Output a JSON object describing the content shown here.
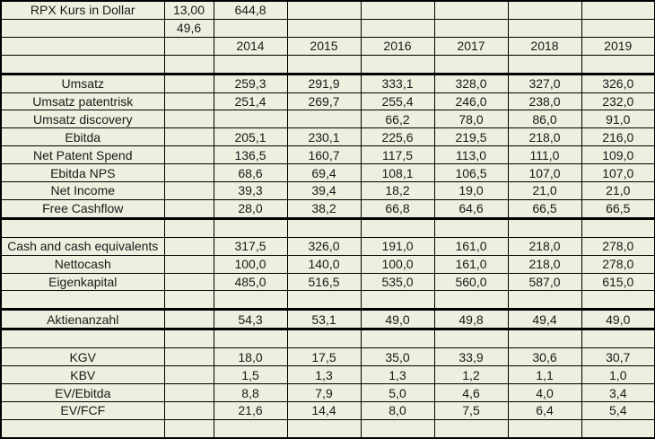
{
  "colors": {
    "cell_background": "#ebf1de",
    "grid_line": "#000000",
    "text": "#1a1a1a"
  },
  "table": {
    "title_cell": "RPX Kurs in Dollar",
    "years": [
      "2014",
      "2015",
      "2016",
      "2017",
      "2018",
      "2019"
    ],
    "rows": [
      {
        "label": "RPX Kurs in Dollar",
        "aux": "13,00",
        "values": [
          "644,8",
          "",
          "",
          "",
          "",
          ""
        ],
        "thick_bottom": false
      },
      {
        "label": "",
        "aux": "49,6",
        "values": [
          "",
          "",
          "",
          "",
          "",
          ""
        ],
        "thick_bottom": false
      },
      {
        "label": "",
        "aux": "",
        "values": [
          "2014",
          "2015",
          "2016",
          "2017",
          "2018",
          "2019"
        ],
        "thick_bottom": false
      },
      {
        "label": "",
        "aux": "",
        "values": [
          "",
          "",
          "",
          "",
          "",
          ""
        ],
        "thick_bottom": true
      },
      {
        "label": "Umsatz",
        "aux": "",
        "values": [
          "259,3",
          "291,9",
          "333,1",
          "328,0",
          "327,0",
          "326,0"
        ],
        "thick_bottom": false
      },
      {
        "label": "Umsatz patentrisk",
        "aux": "",
        "values": [
          "251,4",
          "269,7",
          "255,4",
          "246,0",
          "238,0",
          "232,0"
        ],
        "thick_bottom": false
      },
      {
        "label": "Umsatz discovery",
        "aux": "",
        "values": [
          "",
          "",
          "66,2",
          "78,0",
          "86,0",
          "91,0"
        ],
        "thick_bottom": false
      },
      {
        "label": "Ebitda",
        "aux": "",
        "values": [
          "205,1",
          "230,1",
          "225,6",
          "219,5",
          "218,0",
          "216,0"
        ],
        "thick_bottom": false
      },
      {
        "label": "Net Patent Spend",
        "aux": "",
        "values": [
          "136,5",
          "160,7",
          "117,5",
          "113,0",
          "111,0",
          "109,0"
        ],
        "thick_bottom": false
      },
      {
        "label": "Ebitda NPS",
        "aux": "",
        "values": [
          "68,6",
          "69,4",
          "108,1",
          "106,5",
          "107,0",
          "107,0"
        ],
        "thick_bottom": false
      },
      {
        "label": "Net Income",
        "aux": "",
        "values": [
          "39,3",
          "39,4",
          "18,2",
          "19,0",
          "21,0",
          "21,0"
        ],
        "thick_bottom": false
      },
      {
        "label": "Free Cashflow",
        "aux": "",
        "values": [
          "28,0",
          "38,2",
          "66,8",
          "64,6",
          "66,5",
          "66,5"
        ],
        "thick_bottom": true
      },
      {
        "label": "",
        "aux": "",
        "values": [
          "",
          "",
          "",
          "",
          "",
          ""
        ],
        "thick_bottom": false
      },
      {
        "label": "Cash and cash equivalents",
        "aux": "",
        "values": [
          "317,5",
          "326,0",
          "191,0",
          "161,0",
          "218,0",
          "278,0"
        ],
        "thick_bottom": false
      },
      {
        "label": "Nettocash",
        "aux": "",
        "values": [
          "100,0",
          "140,0",
          "100,0",
          "161,0",
          "218,0",
          "278,0"
        ],
        "thick_bottom": false
      },
      {
        "label": "Eigenkapital",
        "aux": "",
        "values": [
          "485,0",
          "516,5",
          "535,0",
          "560,0",
          "587,0",
          "615,0"
        ],
        "thick_bottom": false
      },
      {
        "label": "",
        "aux": "",
        "values": [
          "",
          "",
          "",
          "",
          "",
          ""
        ],
        "thick_bottom": true
      },
      {
        "label": "Aktienanzahl",
        "aux": "",
        "values": [
          "54,3",
          "53,1",
          "49,0",
          "49,8",
          "49,4",
          "49,0"
        ],
        "thick_bottom": true
      },
      {
        "label": "",
        "aux": "",
        "values": [
          "",
          "",
          "",
          "",
          "",
          ""
        ],
        "thick_bottom": false
      },
      {
        "label": "KGV",
        "aux": "",
        "values": [
          "18,0",
          "17,5",
          "35,0",
          "33,9",
          "30,6",
          "30,7"
        ],
        "thick_bottom": false
      },
      {
        "label": "KBV",
        "aux": "",
        "values": [
          "1,5",
          "1,3",
          "1,3",
          "1,2",
          "1,1",
          "1,0"
        ],
        "thick_bottom": false
      },
      {
        "label": "EV/Ebitda",
        "aux": "",
        "values": [
          "8,8",
          "7,9",
          "5,0",
          "4,6",
          "4,0",
          "3,4"
        ],
        "thick_bottom": false
      },
      {
        "label": "EV/FCF",
        "aux": "",
        "values": [
          "21,6",
          "14,4",
          "8,0",
          "7,5",
          "6,4",
          "5,4"
        ],
        "thick_bottom": false
      },
      {
        "label": "",
        "aux": "",
        "values": [
          "",
          "",
          "",
          "",
          "",
          ""
        ],
        "thick_bottom": false
      }
    ]
  }
}
